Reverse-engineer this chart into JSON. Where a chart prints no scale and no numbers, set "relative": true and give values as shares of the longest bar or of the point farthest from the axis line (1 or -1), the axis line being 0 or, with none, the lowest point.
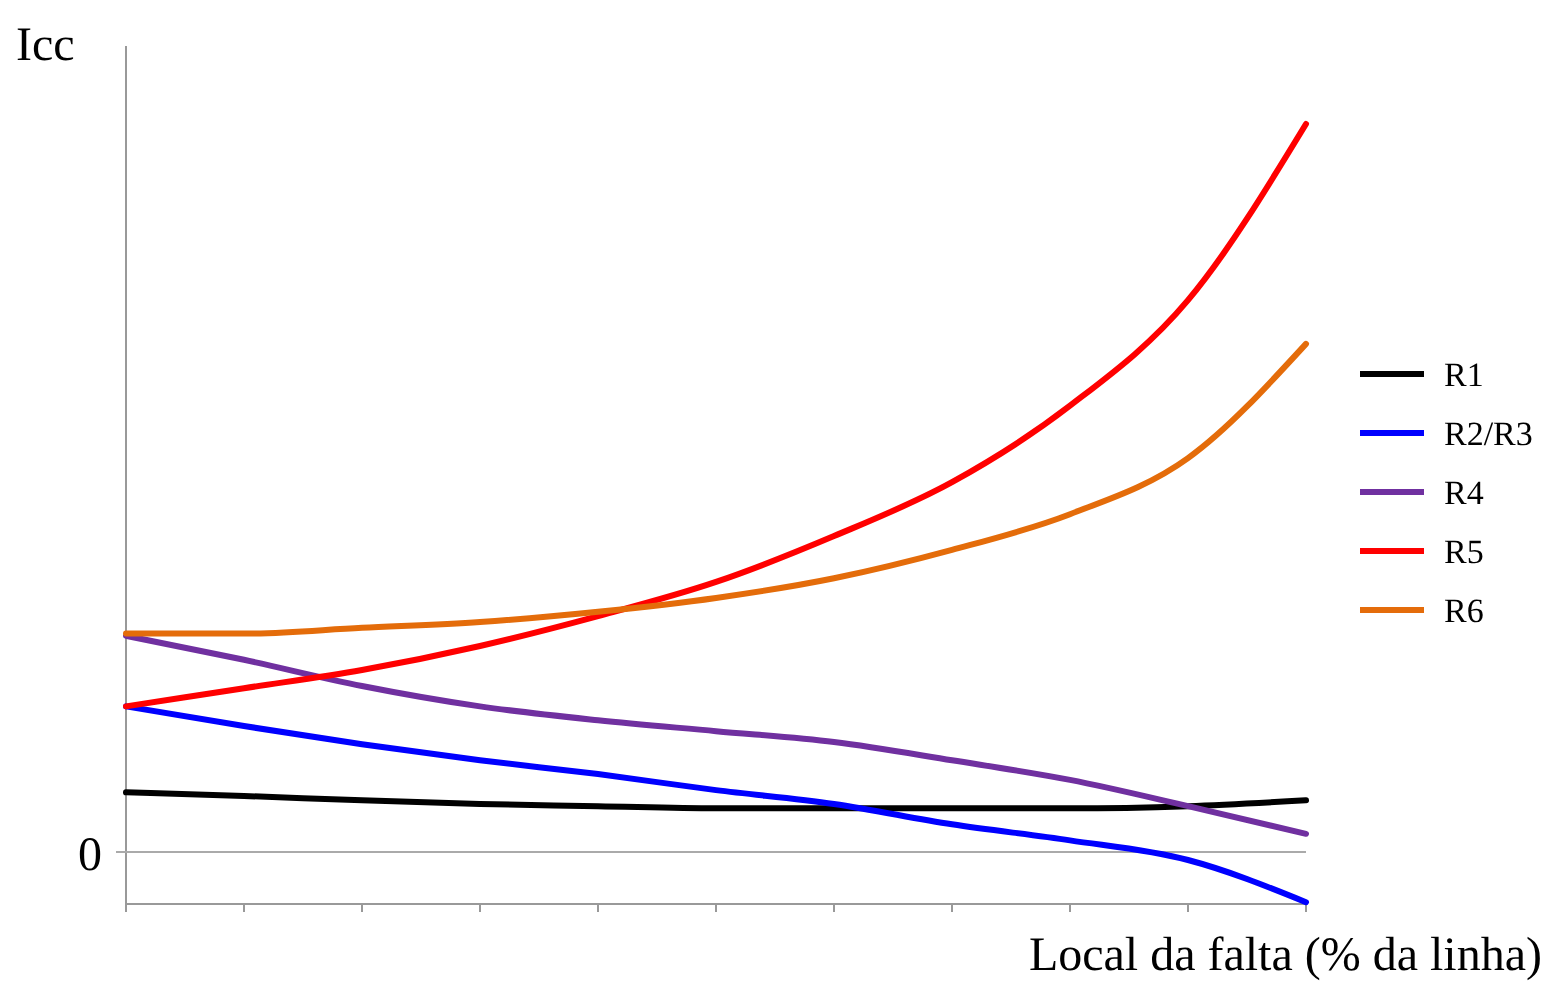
{
  "chart_data": {
    "type": "line",
    "relative": true,
    "ylabel": "Icc",
    "xlabel": "Local da falta (% da linha)",
    "annotations": [
      "0"
    ],
    "legend": "right",
    "marker": "none",
    "line_style": "solid",
    "categories": [
      null,
      null,
      null,
      null,
      null,
      null,
      null,
      null,
      null,
      null,
      null
    ],
    "series": [
      {
        "name": "R1",
        "color": "#000000",
        "values": [
          0.082,
          0.077,
          0.071,
          0.066,
          0.063,
          0.06,
          0.06,
          0.06,
          0.06,
          0.063,
          0.071
        ]
      },
      {
        "name": "R2/R3",
        "color": "#0000ff",
        "values": [
          0.2,
          0.173,
          0.148,
          0.126,
          0.107,
          0.085,
          0.066,
          0.038,
          0.016,
          -0.011,
          -0.069
        ]
      },
      {
        "name": "R4",
        "color": "#7030a0",
        "values": [
          0.297,
          0.264,
          0.228,
          0.2,
          0.181,
          0.166,
          0.151,
          0.126,
          0.099,
          0.063,
          0.025
        ]
      },
      {
        "name": "R5",
        "color": "#ff0000",
        "values": [
          0.2,
          0.225,
          0.25,
          0.283,
          0.324,
          0.371,
          0.434,
          0.508,
          0.613,
          0.758,
          1
        ]
      },
      {
        "name": "R6",
        "color": "#e46c0a",
        "values": [
          0.3,
          0.3,
          0.308,
          0.316,
          0.33,
          0.349,
          0.376,
          0.415,
          0.464,
          0.541,
          0.698
        ]
      }
    ]
  }
}
